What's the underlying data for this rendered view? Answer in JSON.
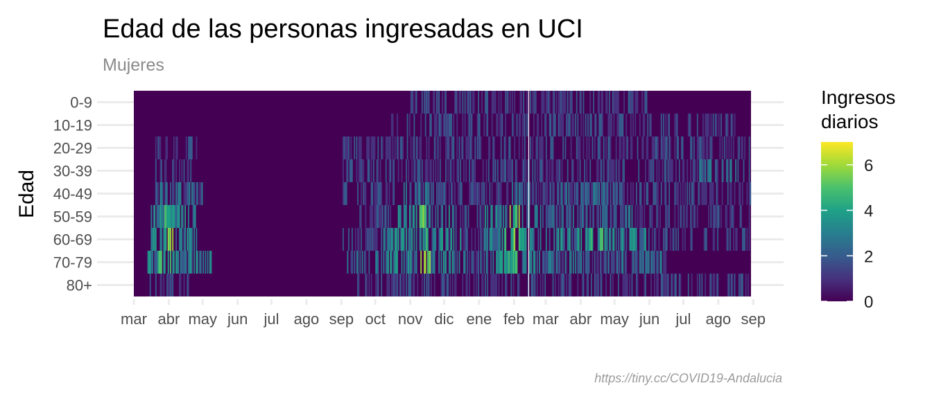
{
  "chart_data": {
    "type": "heatmap",
    "title": "Edad de las personas ingresadas en UCI",
    "subtitle": "Mujeres",
    "ylabel": "Edad",
    "categories": [
      "0-9",
      "10-19",
      "20-29",
      "30-39",
      "40-49",
      "50-59",
      "60-69",
      "70-79",
      "80+"
    ],
    "x_tick_labels": [
      "mar",
      "abr",
      "may",
      "jun",
      "jul",
      "ago",
      "sep",
      "oct",
      "nov",
      "dic",
      "ene",
      "feb",
      "mar",
      "abr",
      "may",
      "jun",
      "jul",
      "ago",
      "sep"
    ],
    "x_range": [
      "2020-03-01",
      "2021-09-01"
    ],
    "date_markers": [
      "2021-02-14"
    ],
    "legend": {
      "title_lines": [
        "Ingresos",
        "diarios"
      ],
      "values": [
        0,
        2,
        4,
        6
      ],
      "range": [
        0,
        7
      ],
      "placement": "right",
      "colors": [
        "#440154",
        "#46327e",
        "#365c8d",
        "#277f8e",
        "#1fa187",
        "#4ac16d",
        "#a0da39",
        "#fde725"
      ]
    },
    "series": [
      {
        "name": "0-9",
        "peaks": [
          {
            "start": "2020-11-01",
            "end": "2021-06-01",
            "value": 1
          }
        ]
      },
      {
        "name": "10-19",
        "peaks": [
          {
            "start": "2020-10-15",
            "end": "2021-08-15",
            "value": 1
          }
        ]
      },
      {
        "name": "20-29",
        "peaks": [
          {
            "start": "2020-03-20",
            "end": "2020-04-25",
            "value": 1
          },
          {
            "start": "2020-09-01",
            "end": "2021-08-31",
            "value": 1
          }
        ]
      },
      {
        "name": "30-39",
        "peaks": [
          {
            "start": "2020-03-20",
            "end": "2020-04-25",
            "value": 1
          },
          {
            "start": "2020-09-01",
            "end": "2021-08-31",
            "value": 1
          },
          {
            "start": "2021-07-15",
            "end": "2021-08-20",
            "value": 2
          }
        ]
      },
      {
        "name": "40-49",
        "peaks": [
          {
            "start": "2020-03-20",
            "end": "2020-04-30",
            "value": 2
          },
          {
            "start": "2020-09-01",
            "end": "2021-08-31",
            "value": 1
          },
          {
            "start": "2020-10-25",
            "end": "2020-11-30",
            "value": 2
          },
          {
            "start": "2021-01-20",
            "end": "2021-02-14",
            "value": 2
          },
          {
            "start": "2021-03-15",
            "end": "2021-05-10",
            "value": 2
          }
        ]
      },
      {
        "name": "50-59",
        "peaks": [
          {
            "start": "2020-03-15",
            "end": "2020-04-25",
            "value": 3
          },
          {
            "start": "2020-03-28",
            "end": "2020-04-06",
            "value": 4
          },
          {
            "start": "2020-09-15",
            "end": "2021-08-31",
            "value": 1
          },
          {
            "start": "2020-10-20",
            "end": "2020-12-10",
            "value": 3
          },
          {
            "start": "2020-11-08",
            "end": "2020-11-14",
            "value": 6
          },
          {
            "start": "2021-01-05",
            "end": "2021-02-25",
            "value": 3
          },
          {
            "start": "2021-01-28",
            "end": "2021-02-05",
            "value": 5
          },
          {
            "start": "2021-03-01",
            "end": "2021-05-20",
            "value": 2
          }
        ]
      },
      {
        "name": "60-69",
        "peaks": [
          {
            "start": "2020-03-15",
            "end": "2020-04-25",
            "value": 3
          },
          {
            "start": "2020-03-28",
            "end": "2020-04-05",
            "value": 5
          },
          {
            "start": "2020-09-01",
            "end": "2021-08-31",
            "value": 1
          },
          {
            "start": "2020-10-05",
            "end": "2020-12-15",
            "value": 3
          },
          {
            "start": "2020-11-05",
            "end": "2020-11-15",
            "value": 4
          },
          {
            "start": "2021-01-05",
            "end": "2021-02-28",
            "value": 3
          },
          {
            "start": "2021-01-20",
            "end": "2021-02-08",
            "value": 5
          },
          {
            "start": "2021-03-01",
            "end": "2021-05-31",
            "value": 3
          },
          {
            "start": "2021-04-08",
            "end": "2021-04-22",
            "value": 4
          }
        ]
      },
      {
        "name": "70-79",
        "peaks": [
          {
            "start": "2020-03-12",
            "end": "2020-05-10",
            "value": 3
          },
          {
            "start": "2020-03-22",
            "end": "2020-04-08",
            "value": 4
          },
          {
            "start": "2020-09-05",
            "end": "2021-06-15",
            "value": 2
          },
          {
            "start": "2020-10-10",
            "end": "2020-12-10",
            "value": 3
          },
          {
            "start": "2020-11-10",
            "end": "2020-11-18",
            "value": 6
          },
          {
            "start": "2021-01-10",
            "end": "2021-02-25",
            "value": 3
          },
          {
            "start": "2021-01-15",
            "end": "2021-02-05",
            "value": 4
          },
          {
            "start": "2021-03-01",
            "end": "2021-05-20",
            "value": 2
          }
        ]
      },
      {
        "name": "80+",
        "peaks": [
          {
            "start": "2020-03-15",
            "end": "2020-04-20",
            "value": 1
          },
          {
            "start": "2020-09-15",
            "end": "2021-08-31",
            "value": 1
          }
        ]
      }
    ]
  },
  "caption": "https://tiny.cc/COVID19-Andalucia"
}
